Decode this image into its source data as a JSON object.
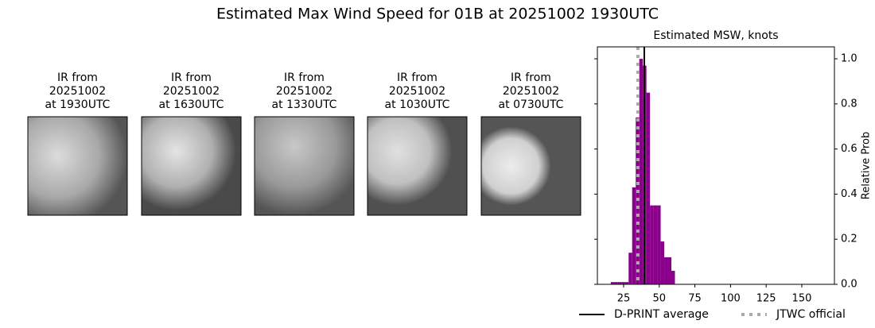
{
  "title": "Estimated Max Wind Speed for 01B at 20251002 1930UTC",
  "panels": [
    {
      "lines": [
        "IR from",
        "20251002",
        "at 1930UTC"
      ]
    },
    {
      "lines": [
        "IR from",
        "20251002",
        "at 1630UTC"
      ]
    },
    {
      "lines": [
        "IR from",
        "20251002",
        "at 1330UTC"
      ]
    },
    {
      "lines": [
        "IR from",
        "20251002",
        "at 1030UTC"
      ]
    },
    {
      "lines": [
        "IR from",
        "20251002",
        "at 0730UTC"
      ]
    }
  ],
  "chart_data": {
    "type": "histogram",
    "title": "Estimated MSW, knots",
    "ylabel": "Relative Prob",
    "bins": [
      16,
      18.5,
      21,
      23.5,
      26,
      28.5,
      31,
      33.5,
      36,
      38.5,
      41,
      43.5,
      46,
      48.5,
      51,
      53.5,
      56,
      58.5,
      61
    ],
    "values": [
      0.01,
      0.01,
      0.01,
      0.01,
      0.01,
      0.14,
      0.43,
      0.74,
      1.0,
      0.97,
      0.85,
      0.35,
      0.35,
      0.35,
      0.19,
      0.12,
      0.12,
      0.06
    ],
    "color": "#8b008b",
    "xlim": [
      6.6,
      172.9
    ],
    "ylim": [
      0,
      1.053
    ],
    "xticks": [
      25,
      50,
      75,
      100,
      125,
      150
    ],
    "yticks": [
      {
        "value": 0,
        "label": "0.0"
      },
      {
        "value": 0.2,
        "label": "0.2"
      },
      {
        "value": 0.4,
        "label": "0.4"
      },
      {
        "value": 0.6,
        "label": "0.6"
      },
      {
        "value": 0.8,
        "label": "0.8"
      },
      {
        "value": 1.0,
        "label": "1.0"
      }
    ],
    "lines": [
      {
        "name": "D-PRINT average",
        "color": "#000000",
        "x": 39.5,
        "style": "solid"
      },
      {
        "name": "JTWC official",
        "color": "#aaaaaa",
        "x": 35,
        "style": "dotted"
      }
    ]
  }
}
